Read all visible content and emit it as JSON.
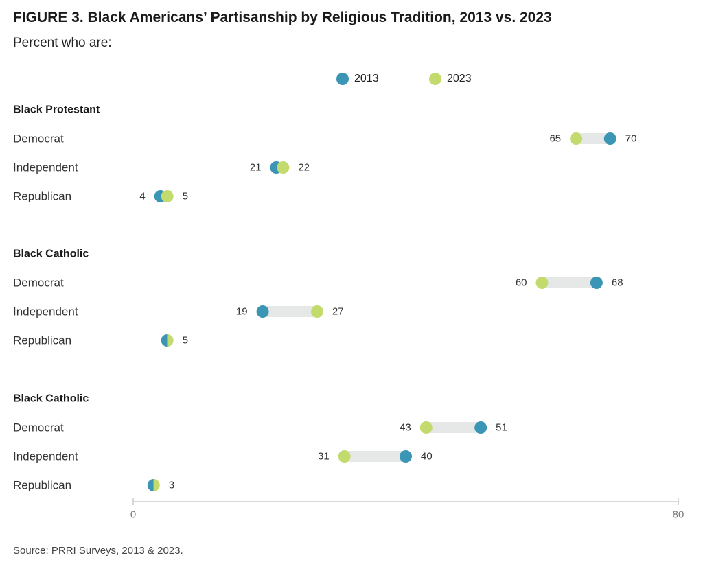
{
  "title": "FIGURE 3. Black Americans’ Partisanship by Religious Tradition, 2013 vs. 2023",
  "subtitle": "Percent who are:",
  "source": "Source: PRRI Surveys, 2013 & 2023.",
  "colors": {
    "y2013": "#3a96b4",
    "y2023": "#c2db6c",
    "bar": "#e6e8e8",
    "axis": "#cccccc"
  },
  "chart_data": {
    "type": "dumbbell",
    "xlim": [
      0,
      80
    ],
    "xticks": [
      "0",
      "80"
    ],
    "legend": {
      "placement": "top-center",
      "entries": [
        "2013",
        "2023"
      ]
    },
    "series": [
      "2013",
      "2023"
    ],
    "groups": [
      {
        "name": "Black Protestant",
        "rows": [
          {
            "label": "Democrat",
            "v2013": 70,
            "v2023": 65,
            "lab2013": "70",
            "lab2023": "65"
          },
          {
            "label": "Independent",
            "v2013": 21,
            "v2023": 22,
            "lab2013": "21",
            "lab2023": "22"
          },
          {
            "label": "Republican",
            "v2013": 4,
            "v2023": 5,
            "lab2013": "4",
            "lab2023": "5"
          }
        ]
      },
      {
        "name": "Black Catholic",
        "rows": [
          {
            "label": "Democrat",
            "v2013": 68,
            "v2023": 60,
            "lab2013": "68",
            "lab2023": "60"
          },
          {
            "label": "Independent",
            "v2013": 19,
            "v2023": 27,
            "lab2013": "19",
            "lab2023": "27"
          },
          {
            "label": "Republican",
            "v2013": 5,
            "v2023": 5,
            "lab2013": "",
            "lab2023": "5"
          }
        ]
      },
      {
        "name": "Black Catholic",
        "rows": [
          {
            "label": "Democrat",
            "v2013": 51,
            "v2023": 43,
            "lab2013": "51",
            "lab2023": "43"
          },
          {
            "label": "Independent",
            "v2013": 40,
            "v2023": 31,
            "lab2013": "40",
            "lab2023": "31"
          },
          {
            "label": "Republican",
            "v2013": 3,
            "v2023": 3,
            "lab2013": "",
            "lab2023": "3"
          }
        ]
      }
    ]
  }
}
